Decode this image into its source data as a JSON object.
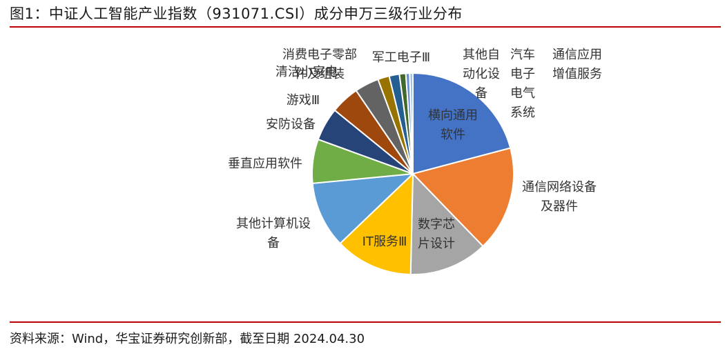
{
  "figure": {
    "title": "图1：中证人工智能产业指数（931071.CSI）成分申万三级行业分布",
    "source": "资料来源：Wind，华宝证券研究创新部，截至日期 2024.04.30"
  },
  "colors": {
    "rule": "#c00000"
  },
  "chart_data": {
    "type": "pie",
    "start_angle_deg": 0,
    "direction": "clockwise",
    "slices": [
      {
        "name": "横向通用软件",
        "value": 20.4,
        "color": "#4472C4"
      },
      {
        "name": "通信网络设备及器件",
        "value": 16.5,
        "color": "#ED7D31"
      },
      {
        "name": "数字芯片设计",
        "value": 12.3,
        "color": "#A5A5A5"
      },
      {
        "name": "IT服务Ⅲ",
        "value": 12.2,
        "color": "#FFC000"
      },
      {
        "name": "其他计算机设备",
        "value": 10.4,
        "color": "#5B9BD5"
      },
      {
        "name": "垂直应用软件",
        "value": 6.9,
        "color": "#70AD47"
      },
      {
        "name": "安防设备",
        "value": 5.2,
        "color": "#264478"
      },
      {
        "name": "游戏Ⅲ",
        "value": 4.5,
        "color": "#9E480E"
      },
      {
        "name": "消费电子零部件及组装",
        "value": 3.8,
        "color": "#636363"
      },
      {
        "name": "清洁/家电",
        "value": 1.8,
        "color": "#997300"
      },
      {
        "name": "军工电子Ⅲ",
        "value": 1.6,
        "color": "#255E91"
      },
      {
        "name": "其他自动化设备",
        "value": 1.0,
        "color": "#43682B"
      },
      {
        "name": "汽车电子电气系统",
        "value": 0.6,
        "color": "#698ED0"
      },
      {
        "name": "通信应用增值服务",
        "value": 0.5,
        "color": "#9DC3E6"
      }
    ]
  },
  "labels": [
    {
      "slice": 0,
      "lines": [
        "横向通用",
        "软件"
      ]
    },
    {
      "slice": 1,
      "lines": [
        "通信网络设备",
        "及器件"
      ]
    },
    {
      "slice": 2,
      "lines": [
        "数字芯",
        "片设计"
      ]
    },
    {
      "slice": 3,
      "lines": [
        "IT服务Ⅲ"
      ]
    },
    {
      "slice": 4,
      "lines": [
        "其他计算机设",
        "备"
      ]
    },
    {
      "slice": 5,
      "lines": [
        "垂直应用软件"
      ]
    },
    {
      "slice": 6,
      "lines": [
        "安防设备"
      ]
    },
    {
      "slice": 7,
      "lines": [
        "游戏Ⅲ"
      ]
    },
    {
      "slice": 8,
      "lines": [
        "消费电子零部",
        "件及组装"
      ]
    },
    {
      "slice": 9,
      "lines": [
        "清洁小家电"
      ]
    },
    {
      "slice": 10,
      "lines": [
        "军工电子Ⅲ"
      ]
    },
    {
      "slice": 11,
      "lines": [
        "其他自",
        "动化设",
        "备"
      ]
    },
    {
      "slice": 12,
      "lines": [
        "汽车",
        "电子",
        "电气",
        "系统"
      ]
    },
    {
      "slice": 13,
      "lines": [
        "通信应用",
        "增值服务"
      ]
    }
  ]
}
